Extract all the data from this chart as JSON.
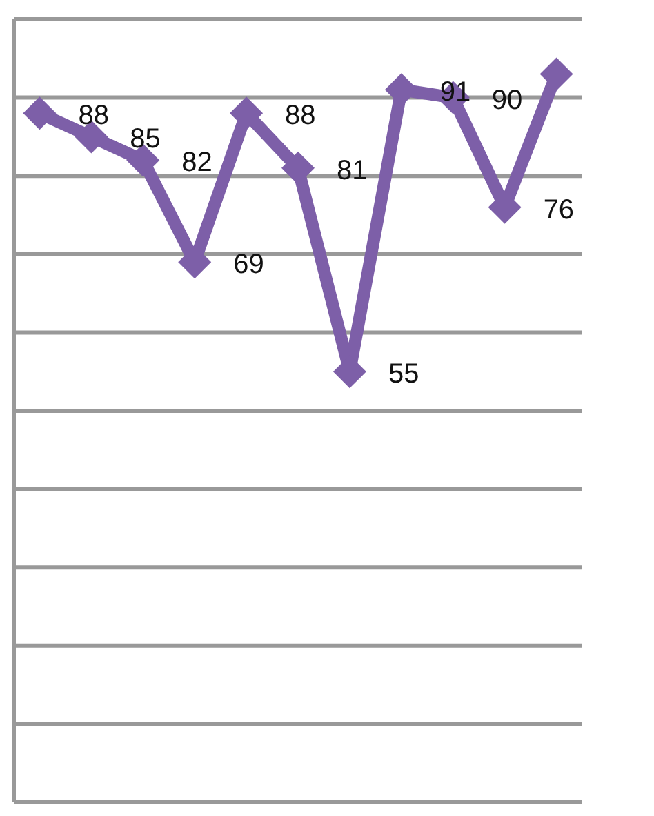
{
  "chart_data": {
    "type": "line",
    "categories": [
      null,
      null,
      null,
      null,
      null,
      null,
      null,
      null,
      null,
      null,
      null
    ],
    "series": [
      {
        "color": "#7d5fa8",
        "values": [
          88,
          85,
          82,
          69,
          88,
          81,
          55,
          91,
          90,
          76,
          93
        ],
        "value_labels": [
          "88",
          "85",
          "82",
          "69",
          "88",
          "81",
          "55",
          "91",
          "90",
          "76",
          null
        ]
      }
    ],
    "ylim": [
      0,
      100
    ],
    "yticks": [
      {
        "value": 0,
        "label": null
      },
      {
        "value": 10,
        "label": null
      },
      {
        "value": 20,
        "label": null
      },
      {
        "value": 30,
        "label": null
      },
      {
        "value": 40,
        "label": null
      },
      {
        "value": 50,
        "label": null
      },
      {
        "value": 60,
        "label": null
      },
      {
        "value": 70,
        "label": null
      },
      {
        "value": 80,
        "label": null
      },
      {
        "value": 90,
        "label": null
      },
      {
        "value": 100,
        "label": null
      }
    ],
    "grid": "y",
    "marker": "diamond",
    "line_style": "solid"
  }
}
